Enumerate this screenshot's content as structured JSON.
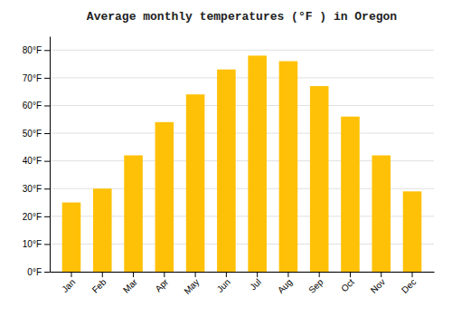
{
  "chart_data": {
    "type": "bar",
    "title": "Average monthly temperatures (°F ) in Oregon",
    "categories": [
      "Jan",
      "Feb",
      "Mar",
      "Apr",
      "May",
      "Jun",
      "Jul",
      "Aug",
      "Sep",
      "Oct",
      "Nov",
      "Dec"
    ],
    "values": [
      25,
      30,
      42,
      54,
      64,
      73,
      78,
      76,
      67,
      56,
      42,
      29
    ],
    "color": "#FFC107",
    "ylim": [
      0,
      85
    ],
    "yticks": [
      {
        "value": 0,
        "label": "0°F"
      },
      {
        "value": 10,
        "label": "10°F"
      },
      {
        "value": 20,
        "label": "20°F"
      },
      {
        "value": 30,
        "label": "30°F"
      },
      {
        "value": 40,
        "label": "40°F"
      },
      {
        "value": 50,
        "label": "50°F"
      },
      {
        "value": 60,
        "label": "60°F"
      },
      {
        "value": 70,
        "label": "70°F"
      },
      {
        "value": 80,
        "label": "80°F"
      }
    ],
    "grid": true
  }
}
